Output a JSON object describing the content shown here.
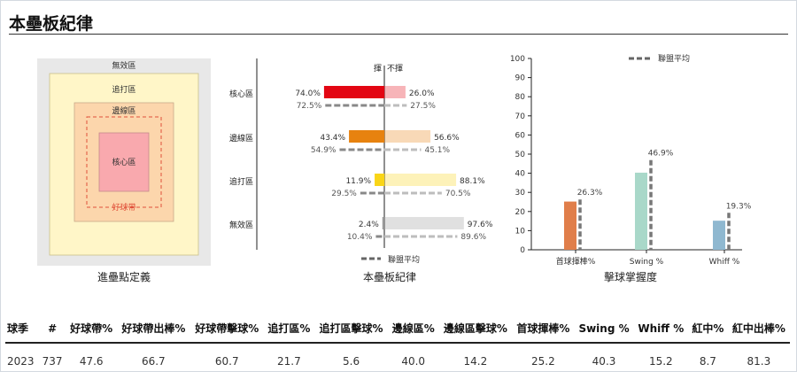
{
  "title": "本壘板紀律",
  "zone_definition": {
    "caption": "進壘點定義",
    "labels": {
      "waste": "無效區",
      "chase": "追打區",
      "shadow": "邊線區",
      "heart": "核心區",
      "strike": "好球帶"
    },
    "colors": {
      "waste": "#e8e8e8",
      "chase": "#fff6c8",
      "shadow": "#fcd6ac",
      "heart": "#f9a9ae",
      "strike_line": "#e0503a"
    }
  },
  "chart_data": [
    {
      "type": "bar",
      "orientation": "horizontal-diverging",
      "caption": "本壘板紀律",
      "header_left": "揮",
      "header_right": "不揮",
      "legend": "聯盟平均",
      "categories": [
        "核心區",
        "邊線區",
        "追打區",
        "無效區"
      ],
      "colors": [
        "#e30613",
        "#e7820f",
        "#f9d517",
        "#999999"
      ],
      "series": [
        {
          "name": "揮",
          "values": [
            74.0,
            43.4,
            11.9,
            2.4
          ],
          "labels": [
            "74.0%",
            "43.4%",
            "11.9%",
            "2.4%"
          ]
        },
        {
          "name": "不揮",
          "values": [
            26.0,
            56.6,
            88.1,
            97.6
          ],
          "labels": [
            "26.0%",
            "56.6%",
            "88.1%",
            "97.6%"
          ]
        }
      ],
      "league_avg": {
        "swing": [
          72.5,
          54.9,
          29.5,
          10.4
        ],
        "take": [
          27.5,
          45.1,
          70.5,
          89.6
        ],
        "swing_labels": [
          "72.5%",
          "54.9%",
          "29.5%",
          "10.4%"
        ],
        "take_labels": [
          "27.5%",
          "45.1%",
          "70.5%",
          "89.6%"
        ]
      }
    },
    {
      "type": "bar",
      "caption": "擊球掌握度",
      "legend": "聯盟平均",
      "categories": [
        "首球揮棒%",
        "Swing %",
        "Whiff %"
      ],
      "values": [
        25.2,
        40.3,
        15.2
      ],
      "league_avg": [
        26.3,
        46.9,
        19.3
      ],
      "league_avg_labels": [
        "26.3%",
        "46.9%",
        "19.3%"
      ],
      "colors": [
        "#e07e4a",
        "#a9d8c9",
        "#8fb8d0"
      ],
      "yticks": [
        "0",
        "10",
        "20",
        "30",
        "40",
        "50",
        "60",
        "70",
        "80",
        "90",
        "100"
      ],
      "ylim": [
        0,
        100
      ]
    }
  ],
  "table": {
    "headers": [
      "球季",
      "#",
      "好球帶%",
      "好球帶出棒%",
      "好球帶擊球%",
      "追打區%",
      "追打區擊球%",
      "邊線區%",
      "邊線區擊球%",
      "首球揮棒%",
      "Swing %",
      "Whiff %",
      "紅中%",
      "紅中出棒%"
    ],
    "rows": [
      [
        "2023",
        "737",
        "47.6",
        "66.7",
        "60.7",
        "21.7",
        "5.6",
        "40.0",
        "14.2",
        "25.2",
        "40.3",
        "15.2",
        "8.7",
        "81.3"
      ]
    ]
  }
}
